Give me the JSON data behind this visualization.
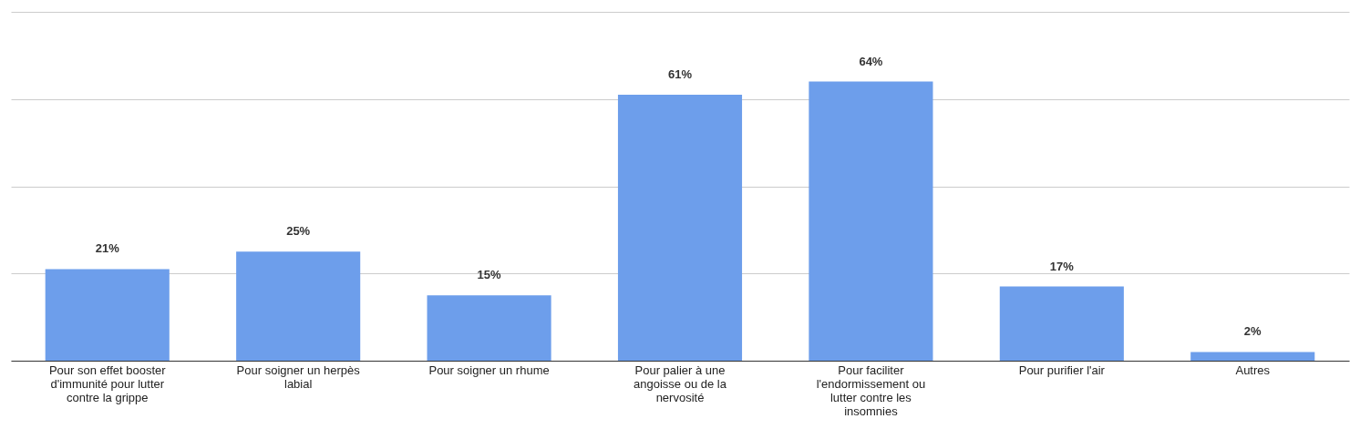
{
  "chart_data": {
    "type": "bar",
    "categories": [
      "Pour son effet booster d'immunité pour lutter contre la grippe",
      "Pour soigner un herpès labial",
      "Pour soigner un rhume",
      "Pour palier à une angoisse ou de la nervosité",
      "Pour faciliter l'endormissement ou lutter contre les insomnies",
      "Pour purifier l'air",
      "Autres"
    ],
    "values": [
      21,
      25,
      15,
      61,
      64,
      17,
      2
    ],
    "value_labels": [
      "21%",
      "25%",
      "15%",
      "61%",
      "64%",
      "17%",
      "2%"
    ],
    "color": "#6d9eeb",
    "ylim": [
      0,
      80
    ],
    "yticks": [
      {
        "value": 0,
        "label": null
      },
      {
        "value": 20,
        "label": null
      },
      {
        "value": 40,
        "label": null
      },
      {
        "value": 60,
        "label": null
      },
      {
        "value": 80,
        "label": null
      }
    ],
    "grid": "y",
    "tick_labels": "x"
  }
}
